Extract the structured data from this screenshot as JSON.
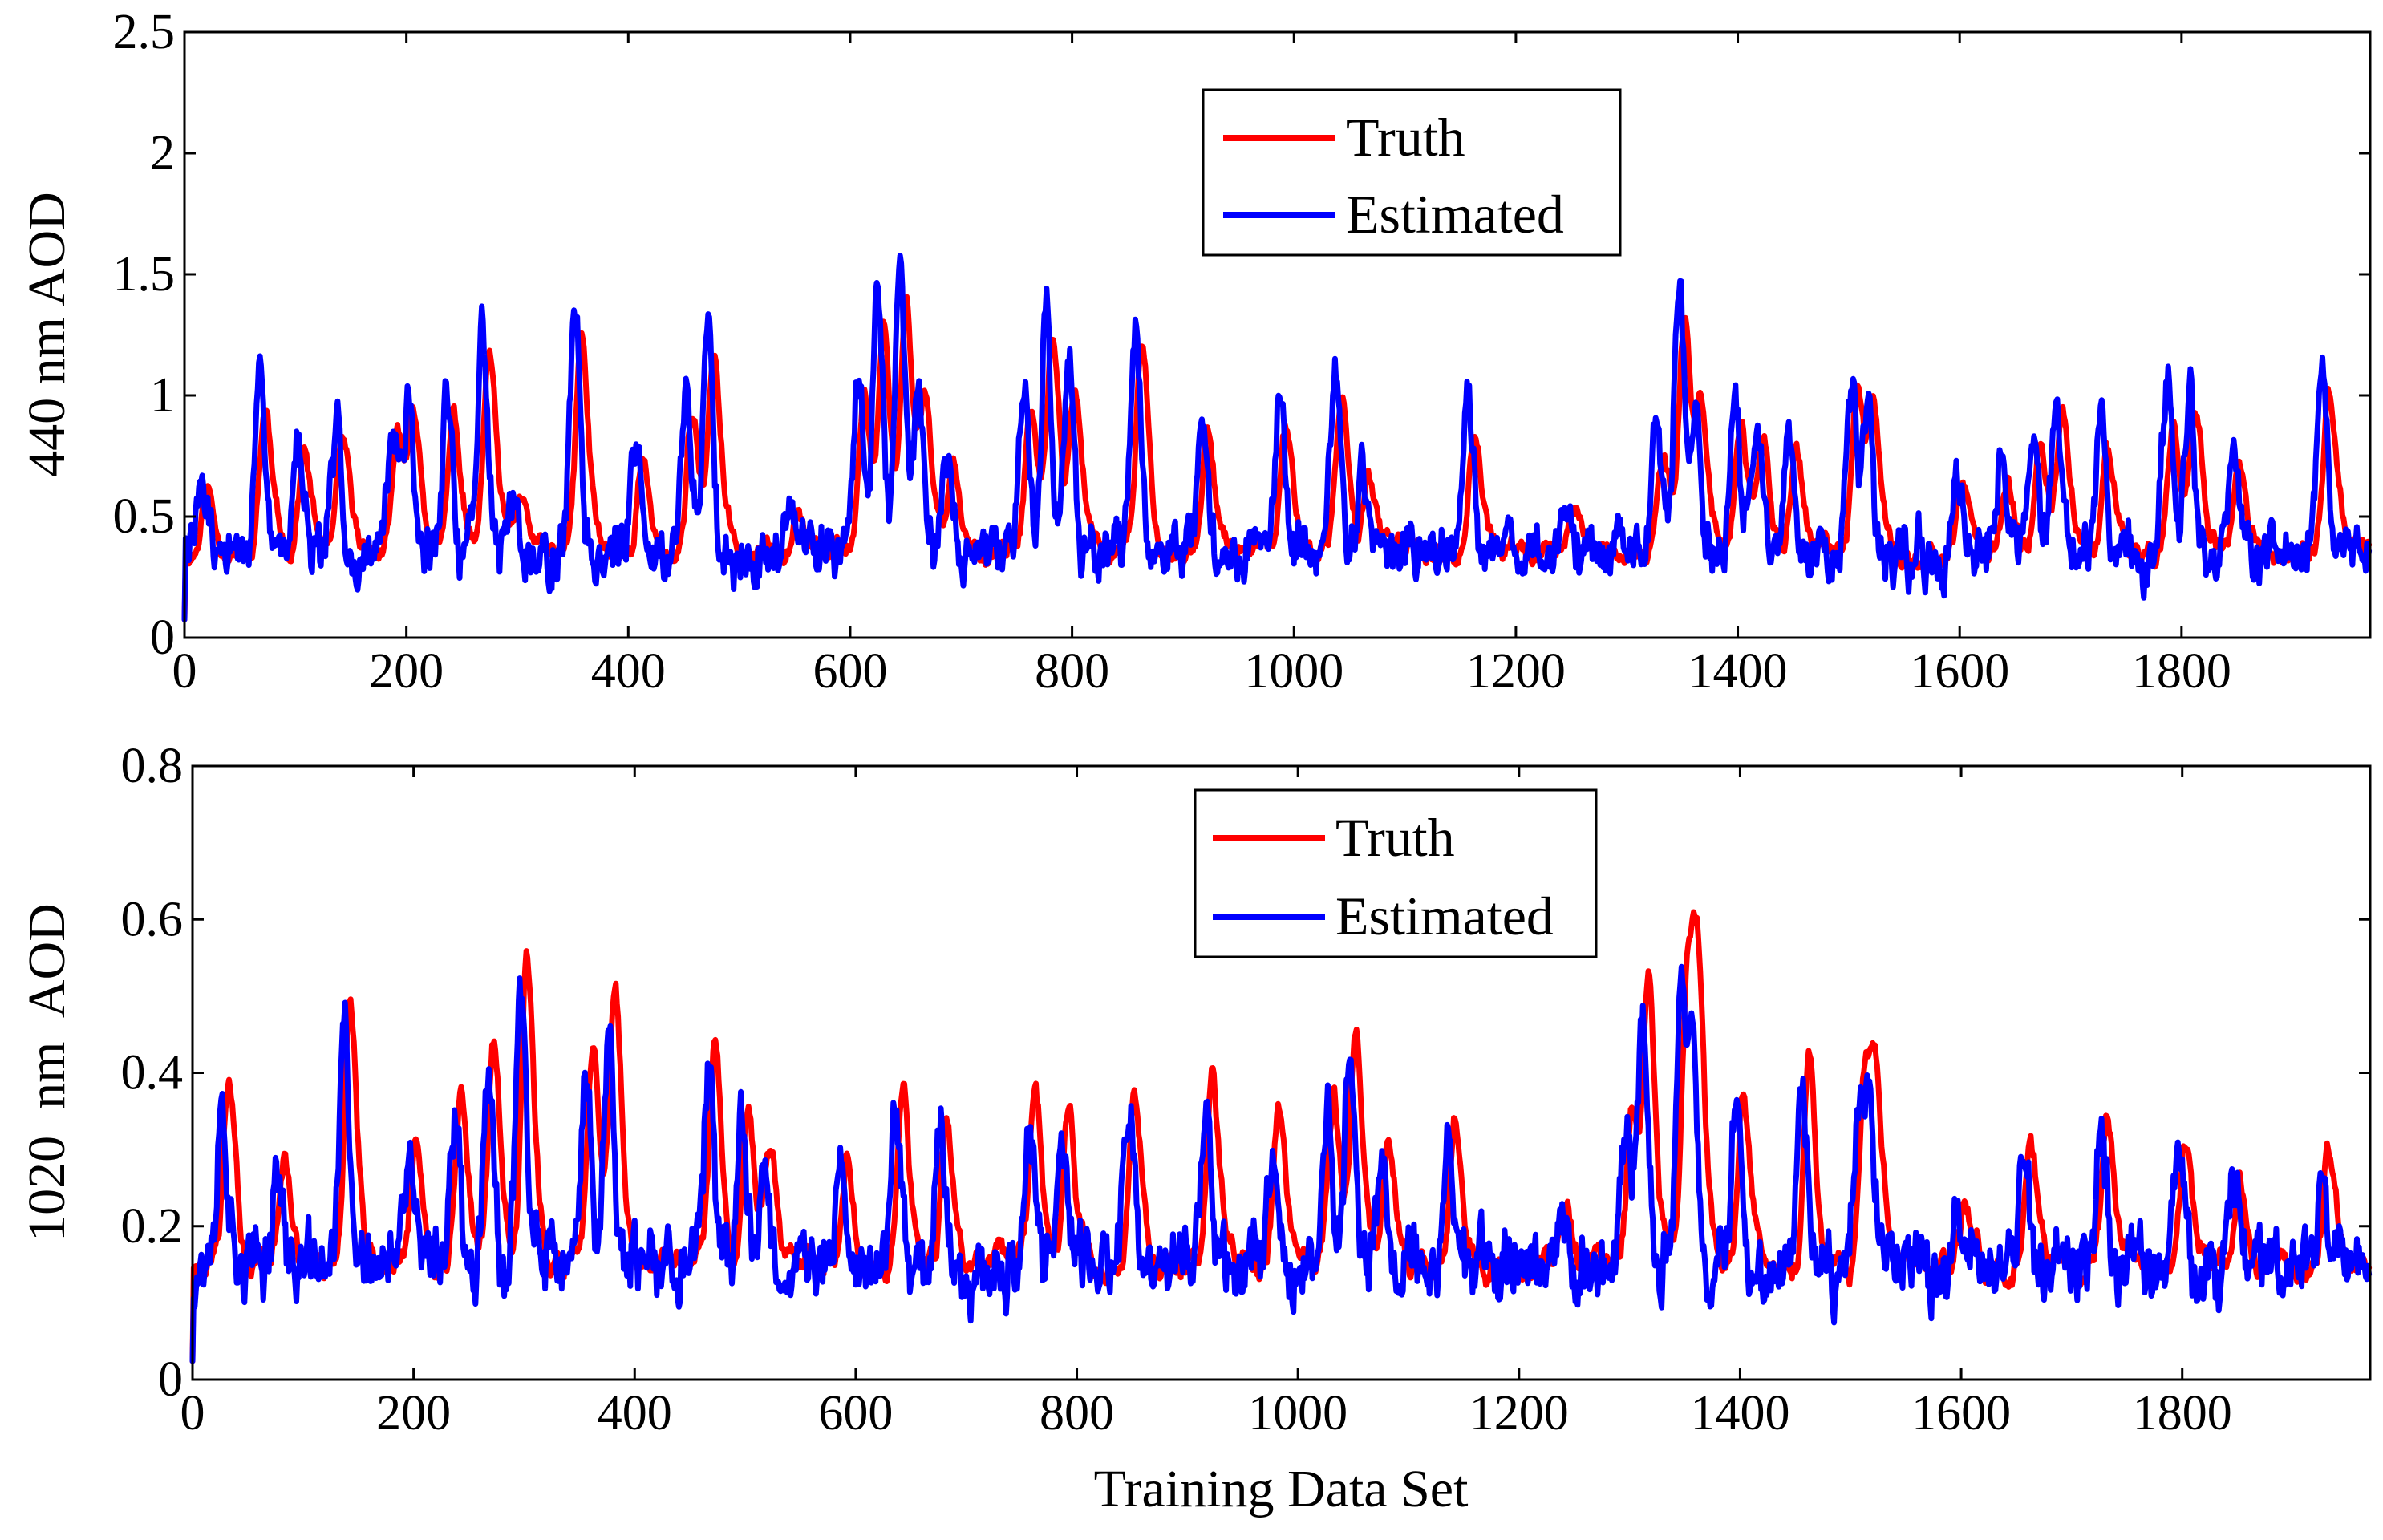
{
  "chart_data": [
    {
      "type": "line",
      "title": "",
      "xlabel": "",
      "ylabel": "440 nm AOD",
      "xlim": [
        0,
        1970
      ],
      "ylim": [
        0,
        2.5
      ],
      "xticks": [
        0,
        200,
        400,
        600,
        800,
        1000,
        1200,
        1400,
        1600,
        1800
      ],
      "yticks": [
        0,
        0.5,
        1,
        1.5,
        2,
        2.5
      ],
      "xtick_labels": [
        "0",
        "200",
        "400",
        "600",
        "800",
        "1000",
        "1200",
        "1400",
        "1600",
        "1800"
      ],
      "ytick_labels": [
        "0",
        "0.5",
        "1",
        "1.5",
        "2",
        "2.5"
      ],
      "grid": false,
      "legend_position": "top-center",
      "base": 0.35,
      "spread": 0.14,
      "peaks": [
        [
          18,
          0.35
        ],
        [
          70,
          0.8
        ],
        [
          105,
          0.55
        ],
        [
          140,
          0.6
        ],
        [
          190,
          0.65
        ],
        [
          205,
          0.7
        ],
        [
          240,
          0.75
        ],
        [
          272,
          1.1
        ],
        [
          300,
          0.3
        ],
        [
          355,
          1.2
        ],
        [
          410,
          0.5
        ],
        [
          455,
          0.8
        ],
        [
          475,
          1.05
        ],
        [
          550,
          0.3
        ],
        [
          610,
          0.9
        ],
        [
          628,
          1.2
        ],
        [
          648,
          1.35
        ],
        [
          665,
          0.75
        ],
        [
          690,
          0.5
        ],
        [
          760,
          0.8
        ],
        [
          780,
          1.15
        ],
        [
          800,
          0.9
        ],
        [
          860,
          1.15
        ],
        [
          920,
          0.7
        ],
        [
          990,
          0.7
        ],
        [
          1040,
          0.85
        ],
        [
          1065,
          0.45
        ],
        [
          1160,
          0.7
        ],
        [
          1250,
          0.25
        ],
        [
          1330,
          0.55
        ],
        [
          1350,
          1.3
        ],
        [
          1365,
          0.7
        ],
        [
          1400,
          0.75
        ],
        [
          1420,
          0.6
        ],
        [
          1450,
          0.55
        ],
        [
          1505,
          0.85
        ],
        [
          1520,
          0.8
        ],
        [
          1600,
          0.35
        ],
        [
          1640,
          0.45
        ],
        [
          1670,
          0.6
        ],
        [
          1690,
          0.75
        ],
        [
          1730,
          0.6
        ],
        [
          1790,
          0.8
        ],
        [
          1810,
          0.75
        ],
        [
          1850,
          0.5
        ],
        [
          1930,
          0.85
        ]
      ],
      "series": [
        {
          "name": "Truth",
          "color": "#ff0000",
          "seed": 11,
          "lag": 0,
          "gain": 1.0,
          "noise": 0.07,
          "smooth": 0.82
        },
        {
          "name": "Estimated",
          "color": "#0000ff",
          "seed": 29,
          "lag": -4,
          "gain": 0.92,
          "noise": 0.13,
          "smooth": 0.55
        }
      ]
    },
    {
      "type": "line",
      "title": "",
      "xlabel": "Training Data Set",
      "ylabel": "1020  nm  AOD",
      "xlim": [
        0,
        1970
      ],
      "ylim": [
        0,
        0.8
      ],
      "xticks": [
        0,
        200,
        400,
        600,
        800,
        1000,
        1200,
        1400,
        1600,
        1800
      ],
      "yticks": [
        0,
        0.2,
        0.4,
        0.6,
        0.8
      ],
      "xtick_labels": [
        "0",
        "200",
        "400",
        "600",
        "800",
        "1000",
        "1200",
        "1400",
        "1600",
        "1800"
      ],
      "ytick_labels": [
        "0",
        "0.2",
        "0.4",
        "0.6",
        "0.8"
      ],
      "grid": false,
      "legend_position": "top-center",
      "base": 0.15,
      "spread": 0.05,
      "peaks": [
        [
          30,
          0.3
        ],
        [
          80,
          0.18
        ],
        [
          140,
          0.45
        ],
        [
          200,
          0.2
        ],
        [
          240,
          0.3
        ],
        [
          270,
          0.38
        ],
        [
          300,
          0.55
        ],
        [
          360,
          0.35
        ],
        [
          380,
          0.45
        ],
        [
          470,
          0.35
        ],
        [
          500,
          0.28
        ],
        [
          520,
          0.2
        ],
        [
          590,
          0.2
        ],
        [
          640,
          0.3
        ],
        [
          680,
          0.25
        ],
        [
          760,
          0.28
        ],
        [
          790,
          0.25
        ],
        [
          850,
          0.3
        ],
        [
          920,
          0.3
        ],
        [
          980,
          0.25
        ],
        [
          1030,
          0.3
        ],
        [
          1050,
          0.4
        ],
        [
          1080,
          0.2
        ],
        [
          1140,
          0.25
        ],
        [
          1240,
          0.1
        ],
        [
          1300,
          0.25
        ],
        [
          1315,
          0.45
        ],
        [
          1350,
          0.5
        ],
        [
          1360,
          0.4
        ],
        [
          1400,
          0.3
        ],
        [
          1460,
          0.35
        ],
        [
          1510,
          0.3
        ],
        [
          1520,
          0.3
        ],
        [
          1600,
          0.1
        ],
        [
          1660,
          0.2
        ],
        [
          1730,
          0.25
        ],
        [
          1800,
          0.2
        ],
        [
          1850,
          0.15
        ],
        [
          1930,
          0.2
        ]
      ],
      "series": [
        {
          "name": "Truth",
          "color": "#ff0000",
          "seed": 13,
          "lag": 0,
          "gain": 1.0,
          "noise": 0.03,
          "smooth": 0.8
        },
        {
          "name": "Estimated",
          "color": "#0000ff",
          "seed": 37,
          "lag": -4,
          "gain": 0.72,
          "noise": 0.05,
          "smooth": 0.5
        }
      ]
    }
  ]
}
